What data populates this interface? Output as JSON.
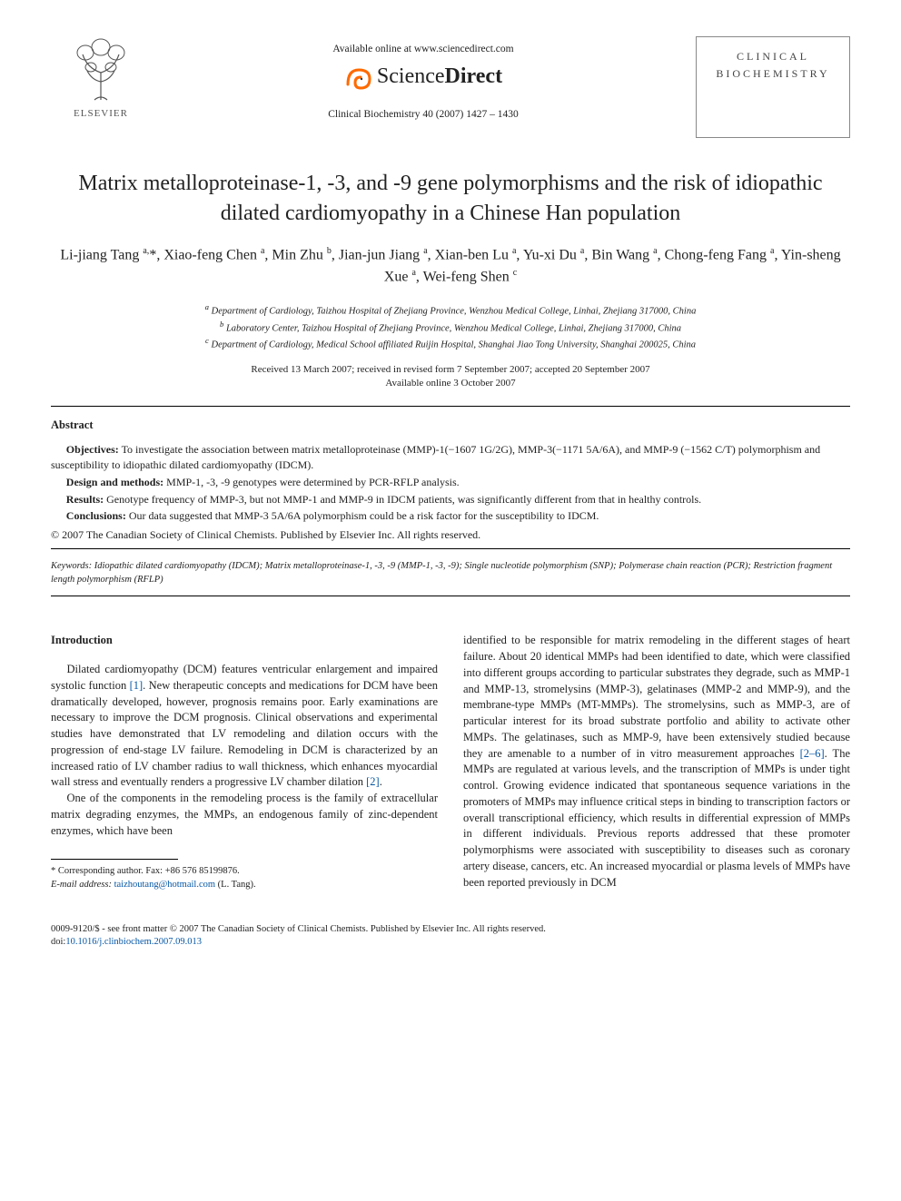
{
  "header": {
    "publisher_name": "ELSEVIER",
    "available_line": "Available online at www.sciencedirect.com",
    "sciencedirect_a": "Science",
    "sciencedirect_b": "Direct",
    "journal_citation": "Clinical Biochemistry 40 (2007) 1427 – 1430",
    "journal_box_line1": "CLINICAL",
    "journal_box_line2": "BIOCHEMISTRY"
  },
  "title": "Matrix metalloproteinase-1, -3, and -9 gene polymorphisms and the risk of idiopathic dilated cardiomyopathy in a Chinese Han population",
  "authors_html": "Li-jiang Tang <sup>a,</sup>*, Xiao-feng Chen <sup>a</sup>, Min Zhu <sup>b</sup>, Jian-jun Jiang <sup>a</sup>, Xian-ben Lu <sup>a</sup>, Yu-xi Du <sup>a</sup>, Bin Wang <sup>a</sup>, Chong-feng Fang <sup>a</sup>, Yin-sheng Xue <sup>a</sup>, Wei-feng Shen <sup>c</sup>",
  "affiliations": {
    "a": "Department of Cardiology, Taizhou Hospital of Zhejiang Province, Wenzhou Medical College, Linhai, Zhejiang 317000, China",
    "b": "Laboratory Center, Taizhou Hospital of Zhejiang Province, Wenzhou Medical College, Linhai, Zhejiang 317000, China",
    "c": "Department of Cardiology, Medical School affiliated Ruijin Hospital, Shanghai Jiao Tong University, Shanghai 200025, China"
  },
  "dates": {
    "received": "Received 13 March 2007; received in revised form 7 September 2007; accepted 20 September 2007",
    "online": "Available online 3 October 2007"
  },
  "abstract": {
    "heading": "Abstract",
    "objectives_label": "Objectives:",
    "objectives": " To investigate the association between matrix metalloproteinase (MMP)-1(−1607 1G/2G), MMP-3(−1171 5A/6A), and MMP-9 (−1562 C/T) polymorphism and susceptibility to idiopathic dilated cardiomyopathy (IDCM).",
    "design_label": "Design and methods:",
    "design": " MMP-1, -3, -9 genotypes were determined by PCR-RFLP analysis.",
    "results_label": "Results:",
    "results": " Genotype frequency of MMP-3, but not MMP-1 and MMP-9 in IDCM patients, was significantly different from that in healthy controls.",
    "conclusions_label": "Conclusions:",
    "conclusions": " Our data suggested that MMP-3 5A/6A polymorphism could be a risk factor for the susceptibility to IDCM.",
    "copyright": "© 2007 The Canadian Society of Clinical Chemists. Published by Elsevier Inc. All rights reserved."
  },
  "keywords": {
    "label": "Keywords:",
    "text": " Idiopathic dilated cardiomyopathy (IDCM); Matrix metalloproteinase-1, -3, -9 (MMP-1, -3, -9); Single nucleotide polymorphism (SNP); Polymerase chain reaction (PCR); Restriction fragment length polymorphism (RFLP)"
  },
  "body": {
    "intro_heading": "Introduction",
    "col1_p1_a": "Dilated cardiomyopathy (DCM) features ventricular enlargement and impaired systolic function ",
    "col1_p1_ref1": "[1]",
    "col1_p1_b": ". New therapeutic concepts and medications for DCM have been dramatically developed, however, prognosis remains poor. Early examinations are necessary to improve the DCM prognosis. Clinical observations and experimental studies have demonstrated that LV remodeling and dilation occurs with the progression of end-stage LV failure. Remodeling in DCM is characterized by an increased ratio of LV chamber radius to wall thickness, which enhances myocardial wall stress and eventually renders a progressive LV chamber dilation ",
    "col1_p1_ref2": "[2]",
    "col1_p1_c": ".",
    "col1_p2": "One of the components in the remodeling process is the family of extracellular matrix degrading enzymes, the MMPs, an endogenous family of zinc-dependent enzymes, which have been",
    "col2_p1_a": "identified to be responsible for matrix remodeling in the different stages of heart failure. About 20 identical MMPs had been identified to date, which were classified into different groups according to particular substrates they degrade, such as MMP-1 and MMP-13, stromelysins (MMP-3), gelatinases (MMP-2 and MMP-9), and the membrane-type MMPs (MT-MMPs). The stromelysins, such as MMP-3, are of particular interest for its broad substrate portfolio and ability to activate other MMPs. The gelatinases, such as MMP-9, have been extensively studied because they are amenable to a number of in vitro measurement approaches ",
    "col2_p1_ref": "[2–6]",
    "col2_p1_b": ". The MMPs are regulated at various levels, and the transcription of MMPs is under tight control. Growing evidence indicated that spontaneous sequence variations in the promoters of MMPs may influence critical steps in binding to transcription factors or overall transcriptional efficiency, which results in differential expression of MMPs in different individuals. Previous reports addressed that these promoter polymorphisms were associated with susceptibility to diseases such as coronary artery disease, cancers, etc. An increased myocardial or plasma levels of MMPs have been reported previously in DCM"
  },
  "footnote": {
    "corr": "* Corresponding author. Fax: +86 576 85199876.",
    "email_label": "E-mail address:",
    "email": "taizhoutang@hotmail.com",
    "email_tail": " (L. Tang)."
  },
  "footer": {
    "line": "0009-9120/$ - see front matter © 2007 The Canadian Society of Clinical Chemists. Published by Elsevier Inc. All rights reserved.",
    "doi_label": "doi:",
    "doi": "10.1016/j.clinbiochem.2007.09.013"
  },
  "colors": {
    "link": "#0657a6",
    "text": "#222222",
    "elsevier_orange": "#ff6a00"
  }
}
